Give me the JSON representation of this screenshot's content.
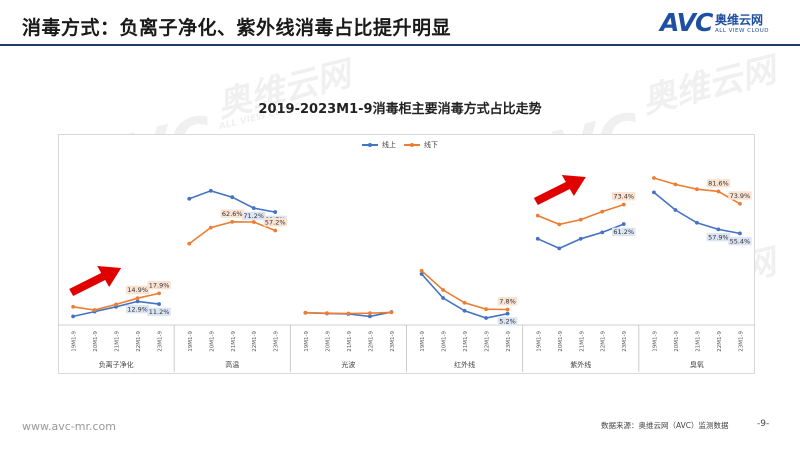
{
  "header": {
    "title": "消毒方式：负离子净化、紫外线消毒占比提升明显",
    "logo_text": "AVC",
    "logo_cn": "奥维云网",
    "logo_en": "ALL VIEW CLOUD"
  },
  "watermark": {
    "text": "AVC",
    "cn": "奥维云网",
    "en": "ALL VIEW CLOUD"
  },
  "footer": {
    "url": "www.avc-mr.com",
    "source": "数据来源：奥维云网（AVC）监测数据",
    "page": "-9-"
  },
  "colors": {
    "online": "#4472c4",
    "offline": "#ed7d31",
    "arrow": "#e00000",
    "title_rule": "#1f3a63"
  },
  "chart_data": {
    "type": "line",
    "title": "2019-2023M1-9消毒柜主要消毒方式占比走势",
    "legend_position": "top-center",
    "grid": false,
    "x": [
      "19M1-9",
      "20M1-9",
      "21M1-9",
      "22M1-9",
      "23M1-9"
    ],
    "ylim": [
      0,
      100
    ],
    "groups": [
      {
        "name": "负离子净化",
        "online": [
          3.5,
          6.5,
          9.5,
          12.9,
          11.2
        ],
        "offline": [
          9.5,
          7.5,
          11.0,
          14.9,
          17.9
        ]
      },
      {
        "name": "高温",
        "online": [
          77.0,
          82.0,
          78.0,
          71.2,
          68.7
        ],
        "offline": [
          49.0,
          59.0,
          62.6,
          62.5,
          57.2
        ]
      },
      {
        "name": "光波",
        "online": [
          5.8,
          5.3,
          5.0,
          3.5,
          6.2
        ],
        "offline": [
          5.8,
          5.5,
          5.3,
          5.5,
          6.0
        ]
      },
      {
        "name": "红外线",
        "online": [
          30.0,
          15.0,
          7.0,
          2.5,
          5.2
        ],
        "offline": [
          32.0,
          20.0,
          12.0,
          8.0,
          7.8
        ]
      },
      {
        "name": "紫外线",
        "online": [
          52.0,
          46.0,
          52.0,
          56.0,
          61.2
        ],
        "offline": [
          66.5,
          61.0,
          64.0,
          69.0,
          73.4
        ]
      },
      {
        "name": "臭氧",
        "online": [
          81.0,
          70.0,
          62.0,
          57.9,
          55.4
        ],
        "offline": [
          90.0,
          86.0,
          83.0,
          81.6,
          73.9
        ]
      }
    ],
    "series": [
      {
        "name": "线上",
        "key": "online"
      },
      {
        "name": "线下",
        "key": "offline"
      }
    ],
    "data_labels": [
      {
        "group": 0,
        "series": "offline",
        "index": 3,
        "text": "14.9%"
      },
      {
        "group": 0,
        "series": "offline",
        "index": 4,
        "text": "17.9%"
      },
      {
        "group": 0,
        "series": "online",
        "index": 3,
        "text": "12.9%"
      },
      {
        "group": 0,
        "series": "online",
        "index": 4,
        "text": "11.2%"
      },
      {
        "group": 1,
        "series": "online",
        "index": 3,
        "text": "71.2%"
      },
      {
        "group": 1,
        "series": "online",
        "index": 4,
        "text": "68.7%"
      },
      {
        "group": 1,
        "series": "offline",
        "index": 2,
        "text": "62.6%"
      },
      {
        "group": 1,
        "series": "offline",
        "index": 4,
        "text": "57.2%"
      },
      {
        "group": 3,
        "series": "offline",
        "index": 4,
        "text": "7.8%"
      },
      {
        "group": 3,
        "series": "online",
        "index": 4,
        "text": "5.2%"
      },
      {
        "group": 4,
        "series": "offline",
        "index": 4,
        "text": "73.4%"
      },
      {
        "group": 4,
        "series": "online",
        "index": 4,
        "text": "61.2%"
      },
      {
        "group": 5,
        "series": "offline",
        "index": 3,
        "text": "81.6%"
      },
      {
        "group": 5,
        "series": "offline",
        "index": 4,
        "text": "73.9%"
      },
      {
        "group": 5,
        "series": "online",
        "index": 3,
        "text": "57.9%"
      },
      {
        "group": 5,
        "series": "online",
        "index": 4,
        "text": "55.4%"
      }
    ],
    "arrows_on_groups": [
      0,
      4
    ]
  }
}
